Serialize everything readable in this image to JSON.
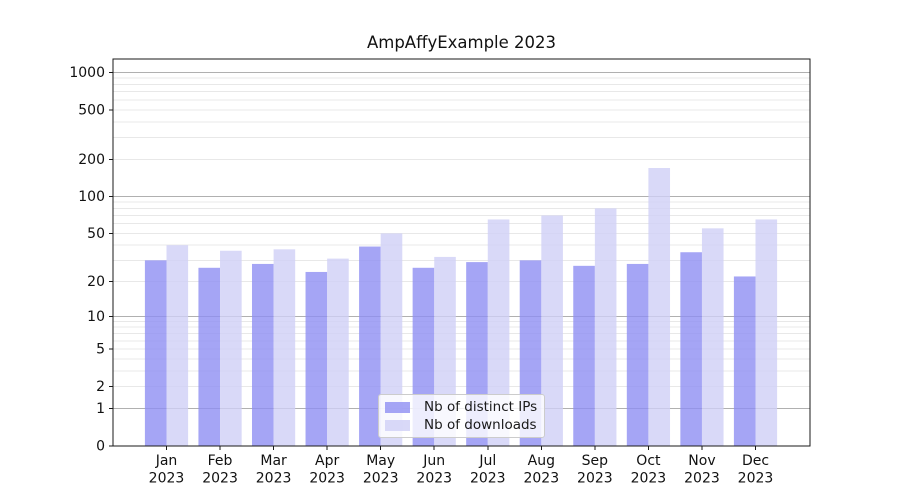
{
  "chart_data": {
    "type": "bar",
    "title": "AmpAffyExample 2023",
    "categories": [
      "Jan",
      "Feb",
      "Mar",
      "Apr",
      "May",
      "Jun",
      "Jul",
      "Aug",
      "Sep",
      "Oct",
      "Nov",
      "Dec"
    ],
    "year_label": "2023",
    "series": [
      {
        "name": "Nb of distinct IPs",
        "color": "#8f8ff3",
        "alpha": 0.8,
        "values": [
          30,
          26,
          28,
          24,
          39,
          26,
          29,
          30,
          27,
          28,
          35,
          22
        ]
      },
      {
        "name": "Nb of downloads",
        "color": "#d0d0f6",
        "alpha": 0.8,
        "values": [
          40,
          36,
          37,
          31,
          50,
          32,
          65,
          70,
          80,
          170,
          55,
          65
        ]
      }
    ],
    "y_scale": "log10(1+x)",
    "y_ticks": [
      0,
      1,
      2,
      5,
      10,
      20,
      50,
      100,
      200,
      500,
      1000
    ],
    "major_grid_values": [
      1,
      10,
      100,
      1000
    ],
    "minor_grid_subs": [
      2,
      3,
      4,
      5,
      6,
      7,
      8,
      9
    ],
    "ylim": [
      0,
      1280
    ],
    "xlabel": "",
    "ylabel": "",
    "grid": true,
    "legend_position": "lower-center"
  },
  "colors": {
    "background": "#ffffff",
    "axes_edge": "#1a1a1a",
    "major_grid": "#b0b0b0",
    "minor_grid": "#e8e8e8",
    "tick_text": "#111111",
    "legend_border": "#cccccc",
    "legend_bg": "rgba(255,255,255,0.8)"
  }
}
